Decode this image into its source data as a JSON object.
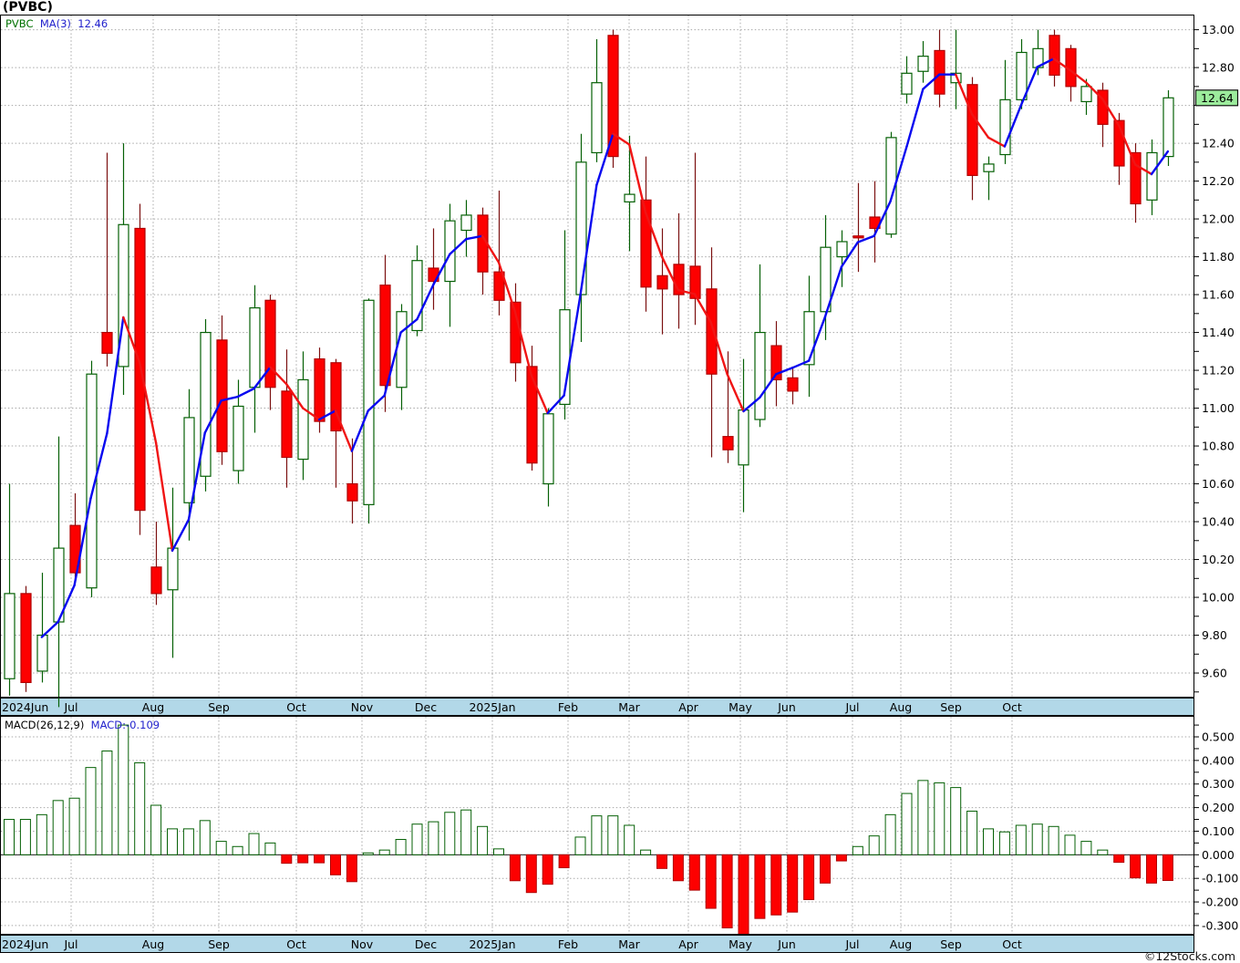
{
  "header": {
    "title": "(PVBC)"
  },
  "legend": {
    "symbol": "PVBC",
    "ma_label": "MA(3)",
    "ma_value": "12.46"
  },
  "macd_legend": {
    "label": "MACD(26,12,9)",
    "value_label": "MACD:-0.109"
  },
  "price_badge": "12.64",
  "watermark": "©12Stocks.com",
  "colors": {
    "candle_up_stroke": "#056005",
    "candle_up_fill": "#ffffff",
    "candle_up_wick": "#056005",
    "candle_down_fill": "#fd0000",
    "candle_down_stroke": "#b00000",
    "candle_down_wick": "#7b1010",
    "ma_rising": "#0808f0",
    "ma_falling": "#f01414",
    "grid": "#a8a8a8",
    "axis_strip": "#b2d8e8",
    "badge_fill": "#9cec9c",
    "macd_pos_stroke": "#056005",
    "macd_pos_fill": "#ffffff",
    "macd_neg_fill": "#fd0000",
    "macd_neg_stroke": "#b00000",
    "border": "#000000"
  },
  "layout_note": "weekly candlestick chart with MACD subpanel",
  "chart_data": [
    {
      "type": "candlestick",
      "title": "(PVBC)",
      "series_label": "PVBC",
      "overlay": "MA(3)",
      "overlay_last_value": 12.46,
      "last_close": 12.64,
      "ylim": [
        9.47,
        13.08
      ],
      "tick_values": [
        13.0,
        12.8,
        12.6,
        12.4,
        12.2,
        12.0,
        11.8,
        11.6,
        11.4,
        11.2,
        11.0,
        10.8,
        10.6,
        10.4,
        10.2,
        10.0,
        9.8,
        9.6
      ],
      "label_skip": 12.6,
      "minor_step": 0.1,
      "grid": true,
      "months": [
        {
          "label": "2024Jun",
          "x": 2,
          "align": "start"
        },
        {
          "label": "Jul",
          "x": 78
        },
        {
          "label": "Aug",
          "x": 168
        },
        {
          "label": "Sep",
          "x": 240
        },
        {
          "label": "Oct",
          "x": 325
        },
        {
          "label": "Nov",
          "x": 397
        },
        {
          "label": "Dec",
          "x": 467
        },
        {
          "label": "2025Jan",
          "x": 540
        },
        {
          "label": "Feb",
          "x": 623
        },
        {
          "label": "Mar",
          "x": 690
        },
        {
          "label": "Apr",
          "x": 755
        },
        {
          "label": "May",
          "x": 812
        },
        {
          "label": "Jun",
          "x": 863
        },
        {
          "label": "Jul",
          "x": 935
        },
        {
          "label": "Aug",
          "x": 988
        },
        {
          "label": "Sep",
          "x": 1043
        },
        {
          "label": "Oct",
          "x": 1110
        }
      ],
      "candles_ohlc": [
        [
          9.57,
          10.6,
          9.48,
          10.02
        ],
        [
          10.02,
          10.06,
          9.5,
          9.55
        ],
        [
          9.61,
          10.13,
          9.55,
          9.8
        ],
        [
          9.87,
          10.85,
          9.42,
          10.26
        ],
        [
          10.38,
          10.55,
          10.08,
          10.13
        ],
        [
          10.05,
          11.25,
          10.0,
          11.18
        ],
        [
          11.4,
          12.35,
          11.22,
          11.29
        ],
        [
          11.22,
          12.4,
          11.07,
          11.97
        ],
        [
          11.95,
          12.08,
          10.33,
          10.46
        ],
        [
          10.16,
          10.4,
          9.96,
          10.02
        ],
        [
          10.04,
          10.58,
          9.68,
          10.26
        ],
        [
          10.5,
          11.1,
          10.3,
          10.95
        ],
        [
          10.64,
          11.47,
          10.56,
          11.4
        ],
        [
          11.36,
          11.49,
          10.7,
          10.77
        ],
        [
          10.67,
          11.15,
          10.6,
          11.01
        ],
        [
          11.11,
          11.65,
          10.87,
          11.53
        ],
        [
          11.57,
          11.6,
          10.99,
          11.11
        ],
        [
          11.09,
          11.31,
          10.58,
          10.74
        ],
        [
          10.73,
          11.3,
          10.62,
          11.15
        ],
        [
          11.26,
          11.32,
          10.87,
          10.93
        ],
        [
          11.24,
          11.26,
          10.58,
          10.88
        ],
        [
          10.6,
          10.84,
          10.39,
          10.51
        ],
        [
          10.49,
          11.58,
          10.39,
          11.57
        ],
        [
          11.65,
          11.81,
          10.98,
          11.12
        ],
        [
          11.11,
          11.55,
          10.99,
          11.51
        ],
        [
          11.41,
          11.86,
          11.38,
          11.78
        ],
        [
          11.74,
          11.95,
          11.52,
          11.67
        ],
        [
          11.67,
          12.08,
          11.43,
          11.99
        ],
        [
          11.94,
          12.1,
          11.8,
          12.02
        ],
        [
          12.02,
          12.06,
          11.6,
          11.72
        ],
        [
          11.72,
          12.15,
          11.49,
          11.57
        ],
        [
          11.56,
          11.66,
          11.14,
          11.24
        ],
        [
          11.22,
          11.33,
          10.67,
          10.71
        ],
        [
          10.6,
          11.0,
          10.48,
          10.97
        ],
        [
          11.02,
          11.94,
          10.94,
          11.52
        ],
        [
          11.6,
          12.45,
          11.35,
          12.3
        ],
        [
          12.35,
          12.95,
          12.3,
          12.72
        ],
        [
          12.97,
          13.0,
          12.27,
          12.33
        ],
        [
          12.09,
          12.44,
          11.83,
          12.13
        ],
        [
          12.1,
          12.33,
          11.51,
          11.64
        ],
        [
          11.7,
          11.95,
          11.39,
          11.63
        ],
        [
          11.76,
          12.03,
          11.42,
          11.6
        ],
        [
          11.75,
          12.35,
          11.44,
          11.58
        ],
        [
          11.63,
          11.85,
          10.74,
          11.18
        ],
        [
          10.85,
          11.3,
          10.71,
          10.78
        ],
        [
          10.7,
          11.26,
          10.45,
          10.99
        ],
        [
          10.94,
          11.76,
          10.9,
          11.4
        ],
        [
          11.33,
          11.46,
          11.01,
          11.15
        ],
        [
          11.16,
          11.22,
          11.02,
          11.09
        ],
        [
          11.23,
          11.7,
          11.06,
          11.51
        ],
        [
          11.51,
          12.02,
          11.36,
          11.85
        ],
        [
          11.8,
          11.94,
          11.64,
          11.88
        ],
        [
          11.91,
          12.19,
          11.72,
          11.9
        ],
        [
          12.01,
          12.2,
          11.77,
          11.95
        ],
        [
          11.92,
          12.46,
          11.9,
          12.43
        ],
        [
          12.66,
          12.86,
          12.61,
          12.77
        ],
        [
          12.78,
          12.94,
          12.72,
          12.86
        ],
        [
          12.89,
          13.0,
          12.59,
          12.66
        ],
        [
          12.72,
          13.0,
          12.58,
          12.77
        ],
        [
          12.71,
          12.75,
          12.1,
          12.23
        ],
        [
          12.25,
          12.33,
          12.1,
          12.29
        ],
        [
          12.34,
          12.84,
          12.29,
          12.63
        ],
        [
          12.63,
          12.95,
          12.58,
          12.88
        ],
        [
          12.8,
          13.0,
          12.76,
          12.9
        ],
        [
          12.97,
          13.0,
          12.7,
          12.76
        ],
        [
          12.9,
          12.92,
          12.62,
          12.7
        ],
        [
          12.62,
          12.74,
          12.55,
          12.7
        ],
        [
          12.68,
          12.72,
          12.38,
          12.5
        ],
        [
          12.52,
          12.56,
          12.18,
          12.28
        ],
        [
          12.35,
          12.4,
          11.98,
          12.08
        ],
        [
          12.1,
          12.42,
          12.02,
          12.35
        ],
        [
          12.33,
          12.68,
          12.28,
          12.64
        ]
      ]
    },
    {
      "type": "bar",
      "indicator": "MACD(26,12,9)",
      "last_value": -0.109,
      "ylim": [
        -0.339,
        0.589
      ],
      "tick_values": [
        0.5,
        0.4,
        0.3,
        0.2,
        0.1,
        0.0,
        -0.1,
        -0.2,
        -0.3
      ],
      "minor_step": 0.05,
      "grid": true,
      "values": [
        0.15,
        0.15,
        0.17,
        0.23,
        0.24,
        0.37,
        0.44,
        0.55,
        0.39,
        0.21,
        0.11,
        0.11,
        0.145,
        0.057,
        0.035,
        0.09,
        0.05,
        -0.036,
        -0.034,
        -0.034,
        -0.085,
        -0.114,
        0.008,
        0.02,
        0.065,
        0.13,
        0.14,
        0.18,
        0.19,
        0.12,
        0.025,
        -0.11,
        -0.16,
        -0.125,
        -0.055,
        0.075,
        0.165,
        0.165,
        0.125,
        0.02,
        -0.058,
        -0.11,
        -0.15,
        -0.227,
        -0.31,
        -0.337,
        -0.27,
        -0.255,
        -0.243,
        -0.19,
        -0.12,
        -0.026,
        0.035,
        0.08,
        0.17,
        0.26,
        0.315,
        0.305,
        0.285,
        0.185,
        0.11,
        0.097,
        0.125,
        0.13,
        0.12,
        0.083,
        0.057,
        0.02,
        -0.032,
        -0.098,
        -0.12,
        -0.109
      ]
    }
  ]
}
